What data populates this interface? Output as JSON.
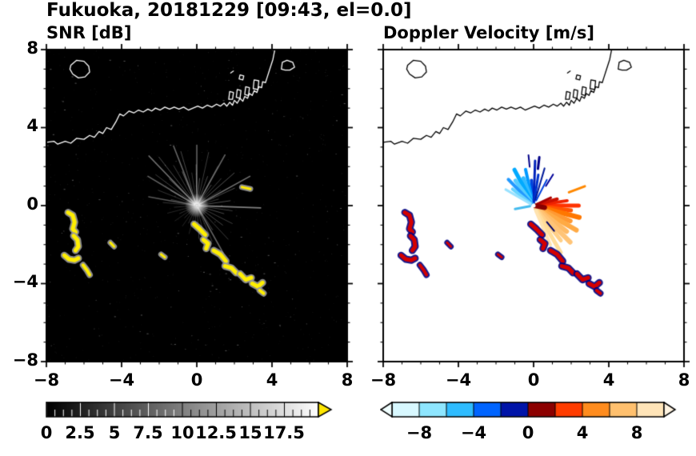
{
  "header": {
    "title": "Fukuoka, 20181229 [09:43, el=0.0]"
  },
  "panels": {
    "snr": {
      "title": "SNR [dB]",
      "bg": "#000000",
      "coast": "#ffffff"
    },
    "vel": {
      "title": "Doppler Velocity [m/s]",
      "bg": "#ffffff",
      "coast": "#000000"
    }
  },
  "axes": {
    "x_ticks": [
      "−8",
      "−4",
      "0",
      "4",
      "8"
    ],
    "y_ticks": [
      "8",
      "4",
      "0",
      "−4",
      "−8"
    ],
    "major_tick_values": [
      -8,
      -4,
      0,
      4,
      8
    ],
    "minor_tick_step": 1
  },
  "colorbars": {
    "snr": {
      "min": 0,
      "max": 20,
      "tick_labels": [
        "0",
        "2.5",
        "5",
        "7.5",
        "10",
        "12.5",
        "15",
        "17.5"
      ],
      "tick_values": [
        0,
        2.5,
        5,
        7.5,
        10,
        12.5,
        15,
        17.5
      ],
      "gradient": [
        "#000000",
        "#ffffff"
      ],
      "over_arrow_color": "#ffe600"
    },
    "vel": {
      "min": -10,
      "max": 10,
      "tick_labels": [
        "−8",
        "−4",
        "0",
        "4",
        "8"
      ],
      "tick_values": [
        -8,
        -4,
        0,
        4,
        8
      ],
      "segment_colors": [
        "#d8f8ff",
        "#8ee6ff",
        "#2fbcff",
        "#0064ff",
        "#0014a8",
        "#8c0000",
        "#ff3c00",
        "#ff8c1e",
        "#ffc06e",
        "#ffe4b8"
      ],
      "under_arrow_color": "#f0feff",
      "over_arrow_color": "#fff4e2"
    }
  },
  "chart_data": {
    "type": "radar_ppi",
    "site": "Fukuoka",
    "date": "20181229",
    "time": "09:43",
    "elevation_deg": 0.0,
    "x_range_km": [
      -8,
      8
    ],
    "y_range_km": [
      -8,
      8
    ],
    "panels": [
      {
        "name": "SNR",
        "units": "dB",
        "scale_range": [
          0,
          20
        ]
      },
      {
        "name": "Doppler Velocity",
        "units": "m/s",
        "scale_range": [
          -10,
          10
        ]
      }
    ],
    "coastlines": [
      {
        "closed": false,
        "pts": [
          -8,
          3.25,
          -7.6,
          3.3,
          -7.4,
          3.15,
          -7.0,
          3.3,
          -6.7,
          3.2,
          -6.4,
          3.45,
          -6.0,
          3.4,
          -5.7,
          3.6,
          -5.45,
          3.5,
          -5.2,
          3.8,
          -5.0,
          3.7,
          -4.8,
          4.0,
          -4.55,
          3.9,
          -4.3,
          4.3,
          -4.1,
          4.7,
          -3.9,
          4.6,
          -3.6,
          4.85,
          -3.35,
          4.75,
          -3.1,
          4.9,
          -2.85,
          4.8,
          -2.6,
          4.95,
          -2.4,
          4.85,
          -2.2,
          5.0,
          -1.95,
          4.9,
          -1.7,
          5.05,
          -1.45,
          4.95,
          -1.2,
          5.05,
          -0.95,
          4.95,
          -0.7,
          5.05,
          -0.45,
          4.9,
          -0.2,
          5.0,
          0.05,
          5.1,
          0.3,
          5.0,
          0.55,
          5.15,
          0.8,
          5.05,
          1.05,
          5.2,
          1.25,
          5.1,
          1.45,
          5.25,
          1.6,
          5.1,
          1.75,
          5.3,
          1.9,
          5.15,
          2.0,
          5.4,
          2.15,
          5.25,
          2.3,
          5.5,
          2.45,
          5.35,
          2.55,
          5.6,
          2.7,
          5.5,
          2.8,
          5.75,
          2.95,
          5.65,
          3.05,
          5.9,
          3.2,
          5.8,
          3.3,
          6.1,
          3.45,
          6.05,
          3.5,
          6.35,
          3.65,
          6.3,
          3.75,
          6.6,
          3.85,
          6.9,
          3.95,
          7.2,
          4.05,
          7.5,
          4.15,
          8.0
        ]
      },
      {
        "closed": true,
        "pts": [
          -6.7,
          7.2,
          -6.4,
          7.45,
          -6.0,
          7.4,
          -5.75,
          7.15,
          -5.7,
          6.85,
          -5.95,
          6.6,
          -6.3,
          6.55,
          -6.6,
          6.75,
          -6.75,
          7.0
        ]
      },
      {
        "closed": true,
        "pts": [
          1.7,
          5.45,
          1.75,
          5.85,
          1.95,
          5.8,
          1.9,
          5.45
        ]
      },
      {
        "closed": true,
        "pts": [
          2.1,
          5.55,
          2.15,
          5.95,
          2.35,
          5.9,
          2.3,
          5.5
        ]
      },
      {
        "closed": true,
        "pts": [
          2.55,
          5.7,
          2.6,
          6.1,
          2.8,
          6.05,
          2.75,
          5.65
        ]
      },
      {
        "closed": true,
        "pts": [
          3.0,
          6.0,
          3.05,
          6.45,
          3.3,
          6.4,
          3.25,
          5.95
        ]
      },
      {
        "closed": true,
        "pts": [
          4.5,
          7.0,
          4.55,
          7.35,
          4.8,
          7.45,
          5.1,
          7.35,
          5.2,
          7.1,
          4.95,
          6.95,
          4.7,
          6.95
        ]
      },
      {
        "closed": true,
        "pts": [
          2.25,
          6.5,
          2.3,
          6.7,
          2.5,
          6.65,
          2.45,
          6.45
        ]
      },
      {
        "closed": false,
        "pts": [
          1.8,
          6.8,
          1.95,
          6.9
        ]
      }
    ],
    "echoes": [
      {
        "w": 5,
        "pts": [
          -6.85,
          -0.35,
          -6.6,
          -0.5,
          -6.5,
          -0.85,
          -6.6,
          -1.2,
          -6.45,
          -1.35
        ]
      },
      {
        "w": 5,
        "pts": [
          -6.55,
          -1.55,
          -6.35,
          -1.75,
          -6.3,
          -2.1,
          -6.45,
          -2.3
        ]
      },
      {
        "w": 5,
        "pts": [
          -7.05,
          -2.55,
          -6.8,
          -2.75,
          -6.5,
          -2.8,
          -6.3,
          -2.7
        ]
      },
      {
        "w": 4,
        "pts": [
          -6.05,
          -3.05,
          -5.85,
          -3.3,
          -5.7,
          -3.55
        ]
      },
      {
        "w": 5,
        "pts": [
          -0.15,
          -0.95,
          0.15,
          -1.2,
          0.45,
          -1.5
        ]
      },
      {
        "w": 5,
        "pts": [
          0.35,
          -1.75,
          0.6,
          -1.95,
          0.5,
          -2.2
        ]
      },
      {
        "w": 5,
        "pts": [
          0.9,
          -2.3,
          1.25,
          -2.5,
          1.55,
          -2.85
        ]
      },
      {
        "w": 5,
        "pts": [
          1.5,
          -3.1,
          1.85,
          -3.2,
          2.1,
          -3.45
        ]
      },
      {
        "w": 5,
        "pts": [
          2.3,
          -3.5,
          2.6,
          -3.8,
          2.9,
          -3.7
        ]
      },
      {
        "w": 5,
        "pts": [
          2.95,
          -4.0,
          3.25,
          -4.15,
          3.5,
          -3.95
        ]
      },
      {
        "w": 4,
        "pts": [
          3.35,
          -4.35,
          3.55,
          -4.5
        ]
      },
      {
        "w": 3,
        "only": "snr",
        "pts": [
          2.4,
          0.95,
          2.85,
          0.85
        ]
      },
      {
        "w": 3,
        "pts": [
          -1.9,
          -2.5,
          -1.7,
          -2.65
        ]
      },
      {
        "w": 3,
        "pts": [
          -4.6,
          -1.9,
          -4.4,
          -2.1
        ]
      }
    ],
    "snr": {
      "halo": "#9a9a9a",
      "core": "#ffee00",
      "noise_seed": 7,
      "noise_count": 800,
      "rays": [
        [
          8,
          1.8,
          1,
          0.3
        ],
        [
          16,
          1.2,
          1,
          0.22
        ],
        [
          24,
          2.2,
          1,
          0.3
        ],
        [
          32,
          1.5,
          1,
          0.2
        ],
        [
          40,
          2.6,
          1,
          0.32
        ],
        [
          47,
          1.9,
          1,
          0.24
        ],
        [
          54,
          1.3,
          1,
          0.3
        ],
        [
          61,
          2.3,
          1,
          0.2
        ],
        [
          69,
          1.6,
          1,
          0.28
        ],
        [
          77,
          2.8,
          1,
          0.24
        ],
        [
          84,
          1.4,
          1,
          0.32
        ],
        [
          91,
          2.1,
          1,
          0.28
        ],
        [
          99,
          1.7,
          1,
          0.2
        ],
        [
          107,
          2.9,
          1,
          0.28
        ],
        [
          114,
          1.9,
          1,
          0.33
        ],
        [
          121,
          2.4,
          1,
          0.24
        ],
        [
          129,
          3.2,
          1,
          0.3
        ],
        [
          137,
          2.0,
          1,
          0.33
        ],
        [
          144,
          2.7,
          1,
          0.24
        ],
        [
          151,
          1.6,
          1,
          0.3
        ],
        [
          159,
          2.2,
          1,
          0.2
        ],
        [
          167,
          1.4,
          1,
          0.24
        ],
        [
          175,
          1.8,
          1,
          0.2
        ],
        [
          184,
          1.2,
          1,
          0.18
        ],
        [
          194,
          1.6,
          1,
          0.15
        ],
        [
          204,
          1.0,
          1,
          0.18
        ],
        [
          214,
          1.4,
          1,
          0.14
        ],
        [
          224,
          0.9,
          1,
          0.18
        ],
        [
          234,
          1.3,
          1,
          0.14
        ],
        [
          244,
          1.0,
          1,
          0.18
        ],
        [
          254,
          1.5,
          1,
          0.14
        ],
        [
          264,
          1.1,
          1,
          0.18
        ],
        [
          274,
          1.7,
          1,
          0.22
        ],
        [
          284,
          1.3,
          1,
          0.18
        ],
        [
          294,
          2.0,
          1,
          0.24
        ],
        [
          304,
          1.5,
          1,
          0.28
        ],
        [
          314,
          2.4,
          1,
          0.24
        ],
        [
          324,
          1.7,
          1,
          0.28
        ],
        [
          334,
          2.1,
          1,
          0.24
        ],
        [
          344,
          1.5,
          1,
          0.28
        ],
        [
          352,
          1.9,
          1,
          0.24
        ],
        [
          358,
          3.4,
          1.6,
          0.5
        ],
        [
          135,
          3.6,
          1.6,
          0.45
        ],
        [
          112,
          3.3,
          1.6,
          0.4
        ],
        [
          60,
          3.0,
          1.6,
          0.4
        ],
        [
          28,
          3.2,
          1.6,
          0.45
        ],
        [
          300,
          2.8,
          1.6,
          0.4
        ],
        [
          150,
          3.0,
          1.6,
          0.38
        ],
        [
          90,
          3.1,
          1.6,
          0.38
        ],
        [
          170,
          2.6,
          1.4,
          0.35
        ]
      ]
    },
    "vel": {
      "halo": "#000080",
      "core": "#d40000",
      "center_rays": [
        [
          95,
          0.15,
          1.3,
          4,
          "#0044dd"
        ],
        [
          103,
          0.15,
          1.9,
          4,
          "#0099ff"
        ],
        [
          111,
          0.15,
          1.5,
          5,
          "#33bbff"
        ],
        [
          119,
          0.15,
          2.1,
          5,
          "#00aaff"
        ],
        [
          127,
          0.15,
          1.6,
          5,
          "#55ccff"
        ],
        [
          135,
          0.15,
          1.9,
          4,
          "#2299ff"
        ],
        [
          143,
          0.2,
          1.4,
          4,
          "#66d4ff"
        ],
        [
          151,
          0.2,
          1.7,
          3,
          "#99e2ff"
        ],
        [
          88,
          0.2,
          2.3,
          3,
          "#0022bb"
        ],
        [
          81,
          0.2,
          1.6,
          3,
          "#0033cc"
        ],
        [
          73,
          0.3,
          2.0,
          2,
          "#001a99"
        ],
        [
          62,
          0.3,
          1.5,
          2,
          "#0040dd"
        ],
        [
          83,
          1.9,
          2.5,
          3,
          "#000088"
        ],
        [
          96,
          2.0,
          2.6,
          2,
          "#000088"
        ],
        [
          190,
          0.2,
          1.0,
          3,
          "#44bbee"
        ],
        [
          0,
          0.15,
          2.4,
          5,
          "#ff3300"
        ],
        [
          353,
          0.15,
          2.0,
          5,
          "#ff5500"
        ],
        [
          346,
          0.15,
          2.5,
          6,
          "#ff7700"
        ],
        [
          338,
          0.2,
          2.1,
          6,
          "#ff9933"
        ],
        [
          331,
          0.2,
          2.6,
          6,
          "#ffaa44"
        ],
        [
          323,
          0.2,
          2.2,
          6,
          "#ffbb66"
        ],
        [
          316,
          0.2,
          2.7,
          6,
          "#ffc477"
        ],
        [
          309,
          0.25,
          2.3,
          5,
          "#ffd088"
        ],
        [
          301,
          0.25,
          2.8,
          5,
          "#ffdd99"
        ],
        [
          294,
          0.3,
          2.2,
          4,
          "#ffe3b0"
        ],
        [
          8,
          0.15,
          1.8,
          4,
          "#ee2200"
        ],
        [
          15,
          0.15,
          1.3,
          4,
          "#cc1100"
        ],
        [
          24,
          0.2,
          1.0,
          3,
          "#aa0000"
        ],
        [
          350,
          0.1,
          0.6,
          6,
          "#880000"
        ],
        [
          310,
          1.1,
          1.7,
          2,
          "#000066"
        ],
        [
          57,
          1.2,
          1.9,
          2,
          "#000099"
        ],
        [
          20,
          2.0,
          2.9,
          3,
          "#ff8800"
        ]
      ]
    }
  }
}
